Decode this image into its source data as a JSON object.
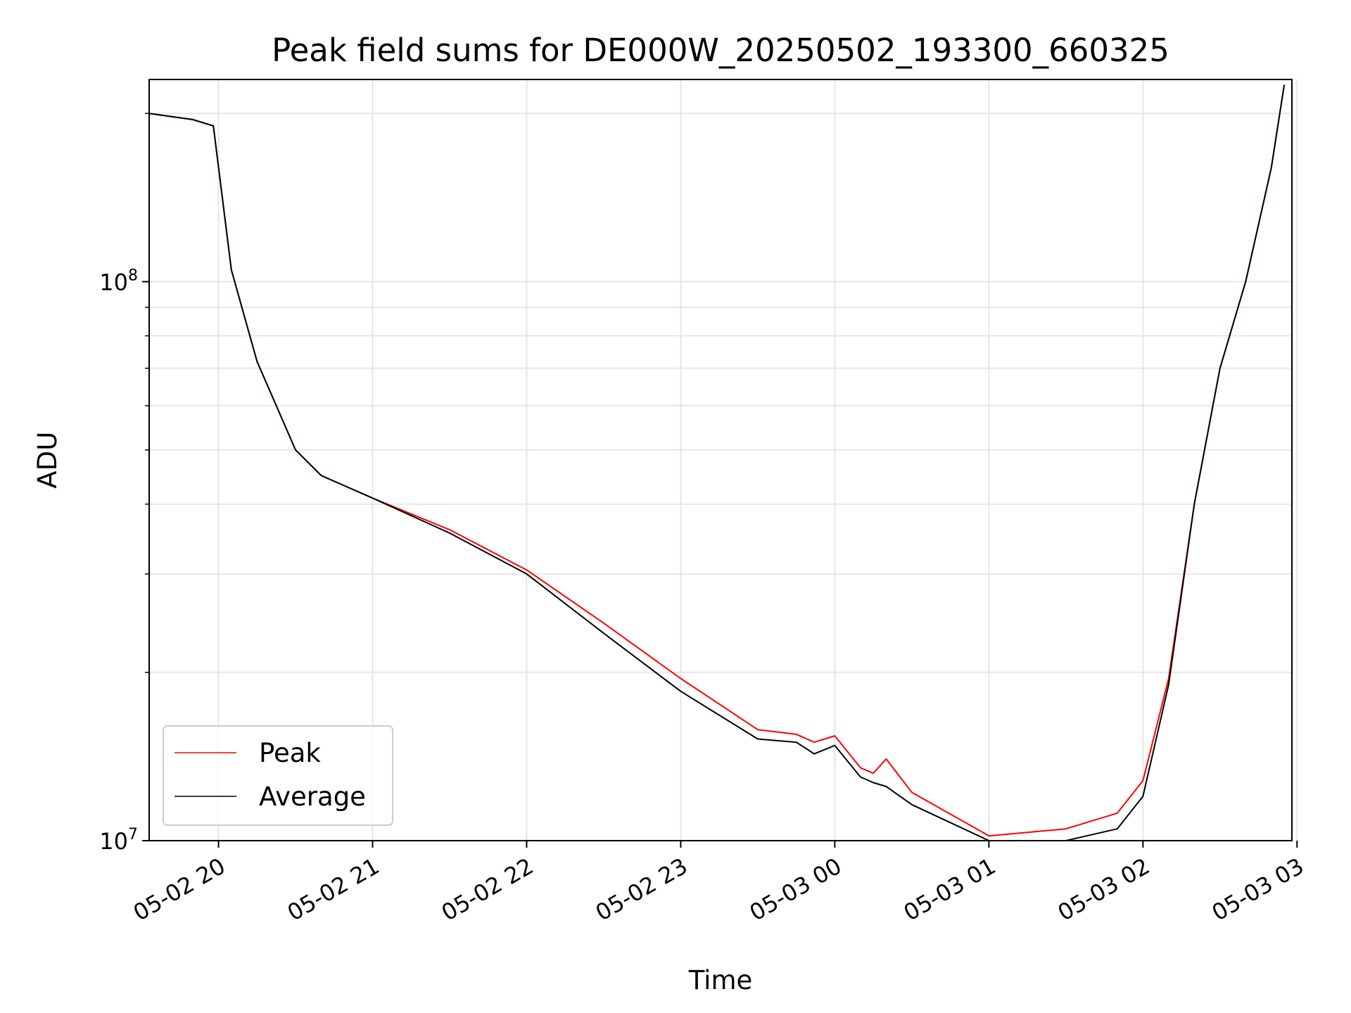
{
  "chart_data": {
    "type": "line",
    "title": "Peak field sums for DE000W_20250502_193300_660325",
    "xlabel": "Time",
    "ylabel": "ADU",
    "y_scale": "log",
    "ylim": [
      10000000,
      230000000
    ],
    "xlim": [
      "2025-05-02 19:33",
      "2025-05-03 02:58"
    ],
    "x_ticks": [
      "05-02 20",
      "05-02 21",
      "05-02 22",
      "05-02 23",
      "05-03 00",
      "05-03 01",
      "05-03 02",
      "05-03 03"
    ],
    "y_ticks": [
      {
        "base": "10",
        "exp": "7",
        "value": 10000000
      },
      {
        "base": "10",
        "exp": "8",
        "value": 100000000
      }
    ],
    "grid": true,
    "legend": "bottom-left",
    "series": [
      {
        "name": "Peak",
        "color": "#ff0000",
        "x": [
          "2025-05-02 19:33",
          "2025-05-02 19:50",
          "2025-05-02 19:58",
          "2025-05-02 20:05",
          "2025-05-02 20:15",
          "2025-05-02 20:30",
          "2025-05-02 20:40",
          "2025-05-02 21:00",
          "2025-05-02 21:30",
          "2025-05-02 22:00",
          "2025-05-02 22:30",
          "2025-05-02 23:00",
          "2025-05-02 23:30",
          "2025-05-02 23:45",
          "2025-05-02 23:52",
          "2025-05-03 00:00",
          "2025-05-03 00:10",
          "2025-05-03 00:15",
          "2025-05-03 00:20",
          "2025-05-03 00:30",
          "2025-05-03 01:00",
          "2025-05-03 01:30",
          "2025-05-03 01:50",
          "2025-05-03 02:00",
          "2025-05-03 02:10",
          "2025-05-03 02:20",
          "2025-05-03 02:30",
          "2025-05-03 02:40",
          "2025-05-03 02:50",
          "2025-05-03 02:55"
        ],
        "values": [
          200000000,
          195000000,
          190000000,
          105000000,
          72000000,
          50000000,
          45000000,
          41000000,
          36000000,
          30500000,
          24500000,
          19500000,
          15800000,
          15500000,
          15000000,
          15400000,
          13500000,
          13200000,
          14000000,
          12200000,
          10200000,
          10500000,
          11200000,
          12800000,
          19500000,
          40000000,
          70000000,
          100000000,
          160000000,
          225000000
        ]
      },
      {
        "name": "Average",
        "color": "#000000",
        "x": [
          "2025-05-02 19:33",
          "2025-05-02 19:50",
          "2025-05-02 19:58",
          "2025-05-02 20:05",
          "2025-05-02 20:15",
          "2025-05-02 20:30",
          "2025-05-02 20:40",
          "2025-05-02 21:00",
          "2025-05-02 21:30",
          "2025-05-02 22:00",
          "2025-05-02 22:30",
          "2025-05-02 23:00",
          "2025-05-02 23:30",
          "2025-05-02 23:45",
          "2025-05-02 23:52",
          "2025-05-03 00:00",
          "2025-05-03 00:10",
          "2025-05-03 00:15",
          "2025-05-03 00:20",
          "2025-05-03 00:30",
          "2025-05-03 01:00",
          "2025-05-03 01:30",
          "2025-05-03 01:50",
          "2025-05-03 02:00",
          "2025-05-03 02:10",
          "2025-05-03 02:20",
          "2025-05-03 02:30",
          "2025-05-03 02:40",
          "2025-05-03 02:50",
          "2025-05-03 02:55"
        ],
        "values": [
          200000000,
          195000000,
          190000000,
          105000000,
          72000000,
          50000000,
          45000000,
          41000000,
          35500000,
          30000000,
          23500000,
          18500000,
          15200000,
          15000000,
          14300000,
          14800000,
          13000000,
          12700000,
          12500000,
          11600000,
          10000000,
          10000000,
          10500000,
          12000000,
          19000000,
          40000000,
          70000000,
          100000000,
          160000000,
          225000000
        ]
      }
    ]
  }
}
